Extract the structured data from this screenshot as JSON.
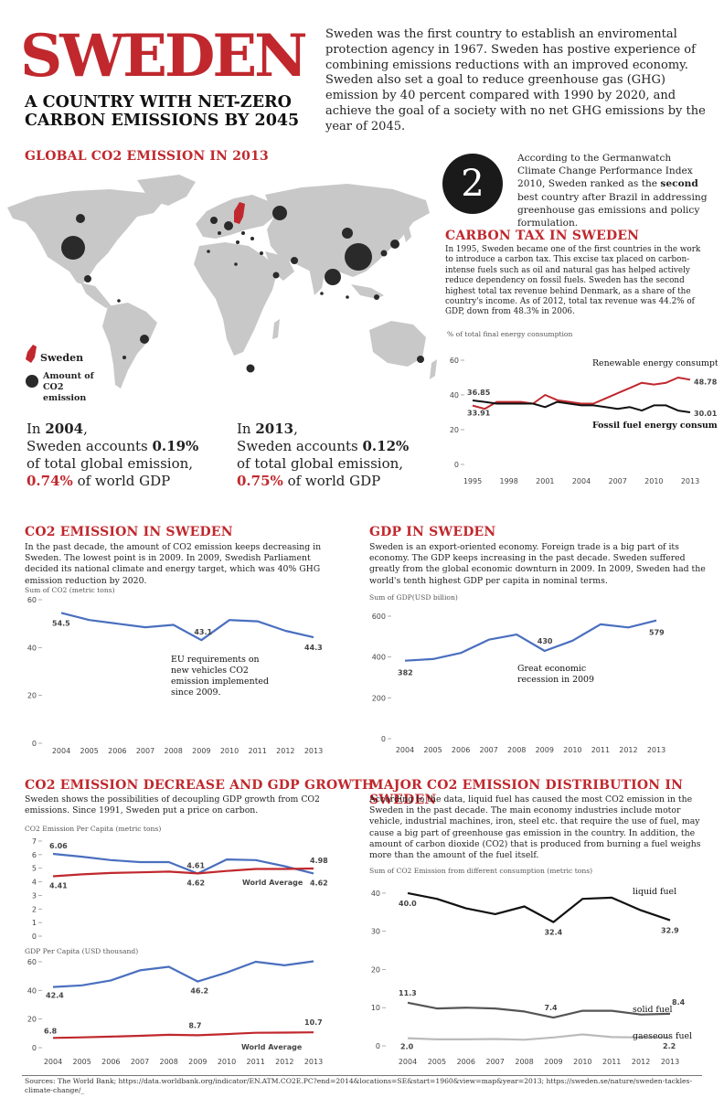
{
  "header": {
    "title": "SWEDEN",
    "subtitle_line1": "A COUNTRY WITH NET-ZERO",
    "subtitle_line2": "CARBON EMISSIONS BY 2045",
    "intro": "Sweden was the first country to establish an enviromental protection agency in 1967. Sweden has postive experience of combining emissions reductions with an improved economy. Sweden also set a goal to reduce greenhouse gas (GHG) emission by 40 percent compared with 1990 by 2020, and achieve the goal of a society with no net GHG emissions by the year of 2045."
  },
  "map": {
    "heading": "GLOBAL CO2 EMISSION IN 2013",
    "legend_sweden": "Sweden",
    "legend_amount": "Amount of CO2 emission",
    "colors": {
      "land": "#c8c8c8",
      "sweden": "#c0282d",
      "bubble": "#2a2a2a"
    }
  },
  "stats": {
    "y2004": {
      "prefix": "In ",
      "year": "2004",
      "line2a": "Sweden accounts ",
      "pct": "0.19%",
      "line3": "of total global emission,",
      "gdp": "0.74%",
      "gdp_suffix": " of world GDP"
    },
    "y2013": {
      "prefix": "In ",
      "year": "2013",
      "line2a": "Sweden accounts ",
      "pct": "0.12%",
      "line3": "of total global emission,",
      "gdp": "0.75%",
      "gdp_suffix": " of world GDP"
    }
  },
  "rank": {
    "number": "2",
    "text_a": "According to the Germanwatch Climate Change Performance Index 2010, Sweden ranked as the ",
    "text_bold": "second",
    "text_b": " best country after Brazil in addressing greenhouse gas emissions and policy formulation."
  },
  "carbon_tax": {
    "heading": "CARBON TAX IN SWEDEN",
    "text": "In 1995, Sweden became one of the first countries in the work to introduce a carbon tax. This excise tax placed on carbon-intense fuels such as oil and natural gas has helped actively reduce dependency on fossil fuels. Sweden has the second highest total tax revenue behind Denmark, as a share of the country's income. As of 2012, total tax revenue was 44.2% of GDP, down from 48.3% in 2006.",
    "caption": "% of total final energy consumption"
  },
  "co2_section": {
    "heading": "CO2 EMISSION IN SWEDEN",
    "text": "In the past decade, the amount of CO2 emission keeps decreasing in Sweden. The lowest point is in 2009. In 2009, Swedish Parliament decided its national climate and energy target, which was 40% GHG emission reduction by 2020.",
    "caption": "Sum of CO2 (metric tons)",
    "annotation": [
      "EU requirements on",
      "new vehicles CO2",
      "emission implemented",
      "since 2009."
    ]
  },
  "gdp_section": {
    "heading": "GDP IN SWEDEN",
    "text": "Sweden is an export-oriented economy. Foreign trade is a big part of its economy. The GDP keeps increasing in the past decade. Sweden suffered greatly from the global economic downturn in 2009. In 2009, Sweden had the world's tenth highest GDP per capita in nominal terms.",
    "caption": "Sum of GDP(USD billion)",
    "annotation": [
      "Great economic",
      "recession in 2009"
    ]
  },
  "decouple_section": {
    "heading": "CO2 EMISSION DECREASE AND GDP GROWTH",
    "text": "Sweden shows the possibilities of decoupling GDP growth from CO2 emissions. Since 1991, Sweden put a price on carbon.",
    "caption1": "CO2 Emission Per Capita (metric tons)",
    "caption2": "GDP Per Capita (USD thousand)"
  },
  "dist_section": {
    "heading": "MAJOR CO2 EMISSION DISTRIBUTION IN SWEDEN",
    "text": "According to the data, liquid fuel has caused the most CO2 emission in the Sweden in the past decade. The main economy industries include motor vehicle, industrial machines, iron, steel etc. that require the use of fuel, may cause a big part of greenhouse gas emission in the country. In addition, the amount of carbon dioxide (CO2) that is produced from burning a fuel weighs more than the amount of the fuel itself.",
    "caption": "Sum of CO2 Emission from different consumption (metric tons)"
  },
  "sources": "Sources: The World Bank; https://data.worldbank.org/indicator/EN.ATM.CO2E.PC?end=2014&locations=SE&start=1960&view=map&year=2013; https://sweden.se/nature/sweden-tackles-climate-change/_",
  "chart_data": [
    {
      "id": "energy",
      "type": "line",
      "x": [
        1995,
        1996,
        1997,
        1998,
        1999,
        2000,
        2001,
        2002,
        2003,
        2004,
        2005,
        2006,
        2007,
        2008,
        2009,
        2010,
        2011,
        2012,
        2013
      ],
      "x_ticks": [
        "1995",
        "1998",
        "2001",
        "2004",
        "2007",
        "2010",
        "2013"
      ],
      "y_ticks": [
        "0",
        "20",
        "40",
        "60"
      ],
      "ylim": [
        0,
        60
      ],
      "series": [
        {
          "name": "Renewable energy consumption",
          "color": "#c0282d",
          "values": [
            33.91,
            32,
            36,
            36,
            36,
            35,
            40,
            37,
            36,
            35,
            35,
            38,
            41,
            44,
            47,
            46,
            47,
            50,
            48.78
          ],
          "labels": {
            "first": "33.91",
            "last": "48.78"
          }
        },
        {
          "name": "Fossil fuel energy consumption",
          "color": "#111111",
          "values": [
            36.85,
            36,
            35,
            35,
            35,
            35,
            33,
            36,
            35,
            34,
            34,
            33,
            32,
            33,
            31,
            34,
            34,
            31,
            30.01
          ],
          "labels": {
            "first": "36.85",
            "last": "30.01"
          }
        }
      ]
    },
    {
      "id": "co2",
      "type": "line",
      "x": [
        2004,
        2005,
        2006,
        2007,
        2008,
        2009,
        2010,
        2011,
        2012,
        2013
      ],
      "x_ticks": [
        "2004",
        "2005",
        "2006",
        "2007",
        "2008",
        "2009",
        "2010",
        "2011",
        "2012",
        "2013"
      ],
      "y_ticks": [
        "0",
        "20",
        "40",
        "60"
      ],
      "ylim": [
        0,
        60
      ],
      "series": [
        {
          "color": "#4a6fbf",
          "values": [
            54.5,
            51.5,
            50,
            48.5,
            49.5,
            43.1,
            51.5,
            51,
            47,
            44.3
          ],
          "point_labels": {
            "0": "54.5",
            "5": "43.1",
            "9": "44.3"
          }
        }
      ]
    },
    {
      "id": "gdp",
      "type": "line",
      "x": [
        2004,
        2005,
        2006,
        2007,
        2008,
        2009,
        2010,
        2011,
        2012,
        2013
      ],
      "x_ticks": [
        "2004",
        "2005",
        "2006",
        "2007",
        "2008",
        "2009",
        "2010",
        "2011",
        "2012",
        "2013"
      ],
      "y_ticks": [
        "0",
        "200",
        "400",
        "600"
      ],
      "ylim": [
        0,
        600
      ],
      "series": [
        {
          "color": "#4a6fbf",
          "values": [
            382,
            390,
            420,
            485,
            510,
            430,
            480,
            560,
            545,
            579
          ],
          "point_labels": {
            "0": "382",
            "5": "430",
            "9": "579"
          }
        }
      ]
    },
    {
      "id": "co2pc",
      "type": "line",
      "x": [
        2004,
        2005,
        2006,
        2007,
        2008,
        2009,
        2010,
        2011,
        2012,
        2013
      ],
      "x_ticks": [],
      "y_ticks": [
        "0",
        "1",
        "2",
        "3",
        "4",
        "5",
        "6",
        "7"
      ],
      "ylim": [
        0,
        7
      ],
      "series": [
        {
          "color": "#4a6fbf",
          "values": [
            6.06,
            5.85,
            5.6,
            5.45,
            5.45,
            4.61,
            5.65,
            5.6,
            5.15,
            4.62
          ],
          "point_labels": {
            "0": "6.06",
            "5": "4.61",
            "9": "4.62"
          }
        },
        {
          "name": "World Average",
          "color": "#c0282d",
          "values": [
            4.41,
            4.55,
            4.65,
            4.7,
            4.75,
            4.62,
            4.8,
            4.95,
            4.95,
            4.98
          ],
          "point_labels": {
            "0": "4.41",
            "5": "4.62",
            "9": "4.98"
          }
        }
      ]
    },
    {
      "id": "gdppc",
      "type": "line",
      "x": [
        2004,
        2005,
        2006,
        2007,
        2008,
        2009,
        2010,
        2011,
        2012,
        2013
      ],
      "x_ticks": [
        "2004",
        "2005",
        "2006",
        "2007",
        "2008",
        "2009",
        "2010",
        "2011",
        "2012",
        "2013"
      ],
      "y_ticks": [
        "0",
        "20",
        "40",
        "60"
      ],
      "ylim": [
        0,
        60
      ],
      "series": [
        {
          "color": "#4a6fbf",
          "values": [
            42.4,
            43.5,
            47,
            54,
            56.5,
            46.2,
            52.5,
            60,
            57.5,
            60.3
          ],
          "point_labels": {
            "0": "42.4",
            "5": "46.2",
            "9": "60.3"
          }
        },
        {
          "name": "World Average",
          "color": "#c0282d",
          "values": [
            6.8,
            7.2,
            7.7,
            8.3,
            9,
            8.7,
            9.5,
            10.4,
            10.5,
            10.7
          ],
          "point_labels": {
            "0": "6.8",
            "5": "8.7",
            "9": "10.7"
          }
        }
      ]
    },
    {
      "id": "fuel",
      "type": "line",
      "x": [
        2004,
        2005,
        2006,
        2007,
        2008,
        2009,
        2010,
        2011,
        2012,
        2013
      ],
      "x_ticks": [
        "2004",
        "2005",
        "2006",
        "2007",
        "2008",
        "2009",
        "2010",
        "2011",
        "2012",
        "2013"
      ],
      "y_ticks": [
        "0",
        "10",
        "20",
        "30",
        "40"
      ],
      "ylim": [
        0,
        45
      ],
      "series": [
        {
          "name": "liquid fuel",
          "color": "#111111",
          "values": [
            40.0,
            38.5,
            36,
            34.5,
            36.5,
            32.4,
            38.5,
            38.8,
            35.5,
            32.9
          ],
          "point_labels": {
            "0": "40.0",
            "5": "32.4",
            "9": "32.9"
          }
        },
        {
          "name": "solid fuel",
          "color": "#555555",
          "values": [
            11.3,
            9.8,
            10,
            9.8,
            9,
            7.4,
            9.2,
            9.2,
            8.2,
            8.4
          ],
          "point_labels": {
            "0": "11.3",
            "5": "7.4",
            "9": "8.4"
          }
        },
        {
          "name": "gaeseous fuel",
          "color": "#bbbbbb",
          "values": [
            2.0,
            1.7,
            1.7,
            1.8,
            1.6,
            2.2,
            3.0,
            2.3,
            2.2,
            2.2
          ],
          "point_labels": {
            "0": "2.0",
            "9": "2.2"
          }
        }
      ]
    }
  ]
}
